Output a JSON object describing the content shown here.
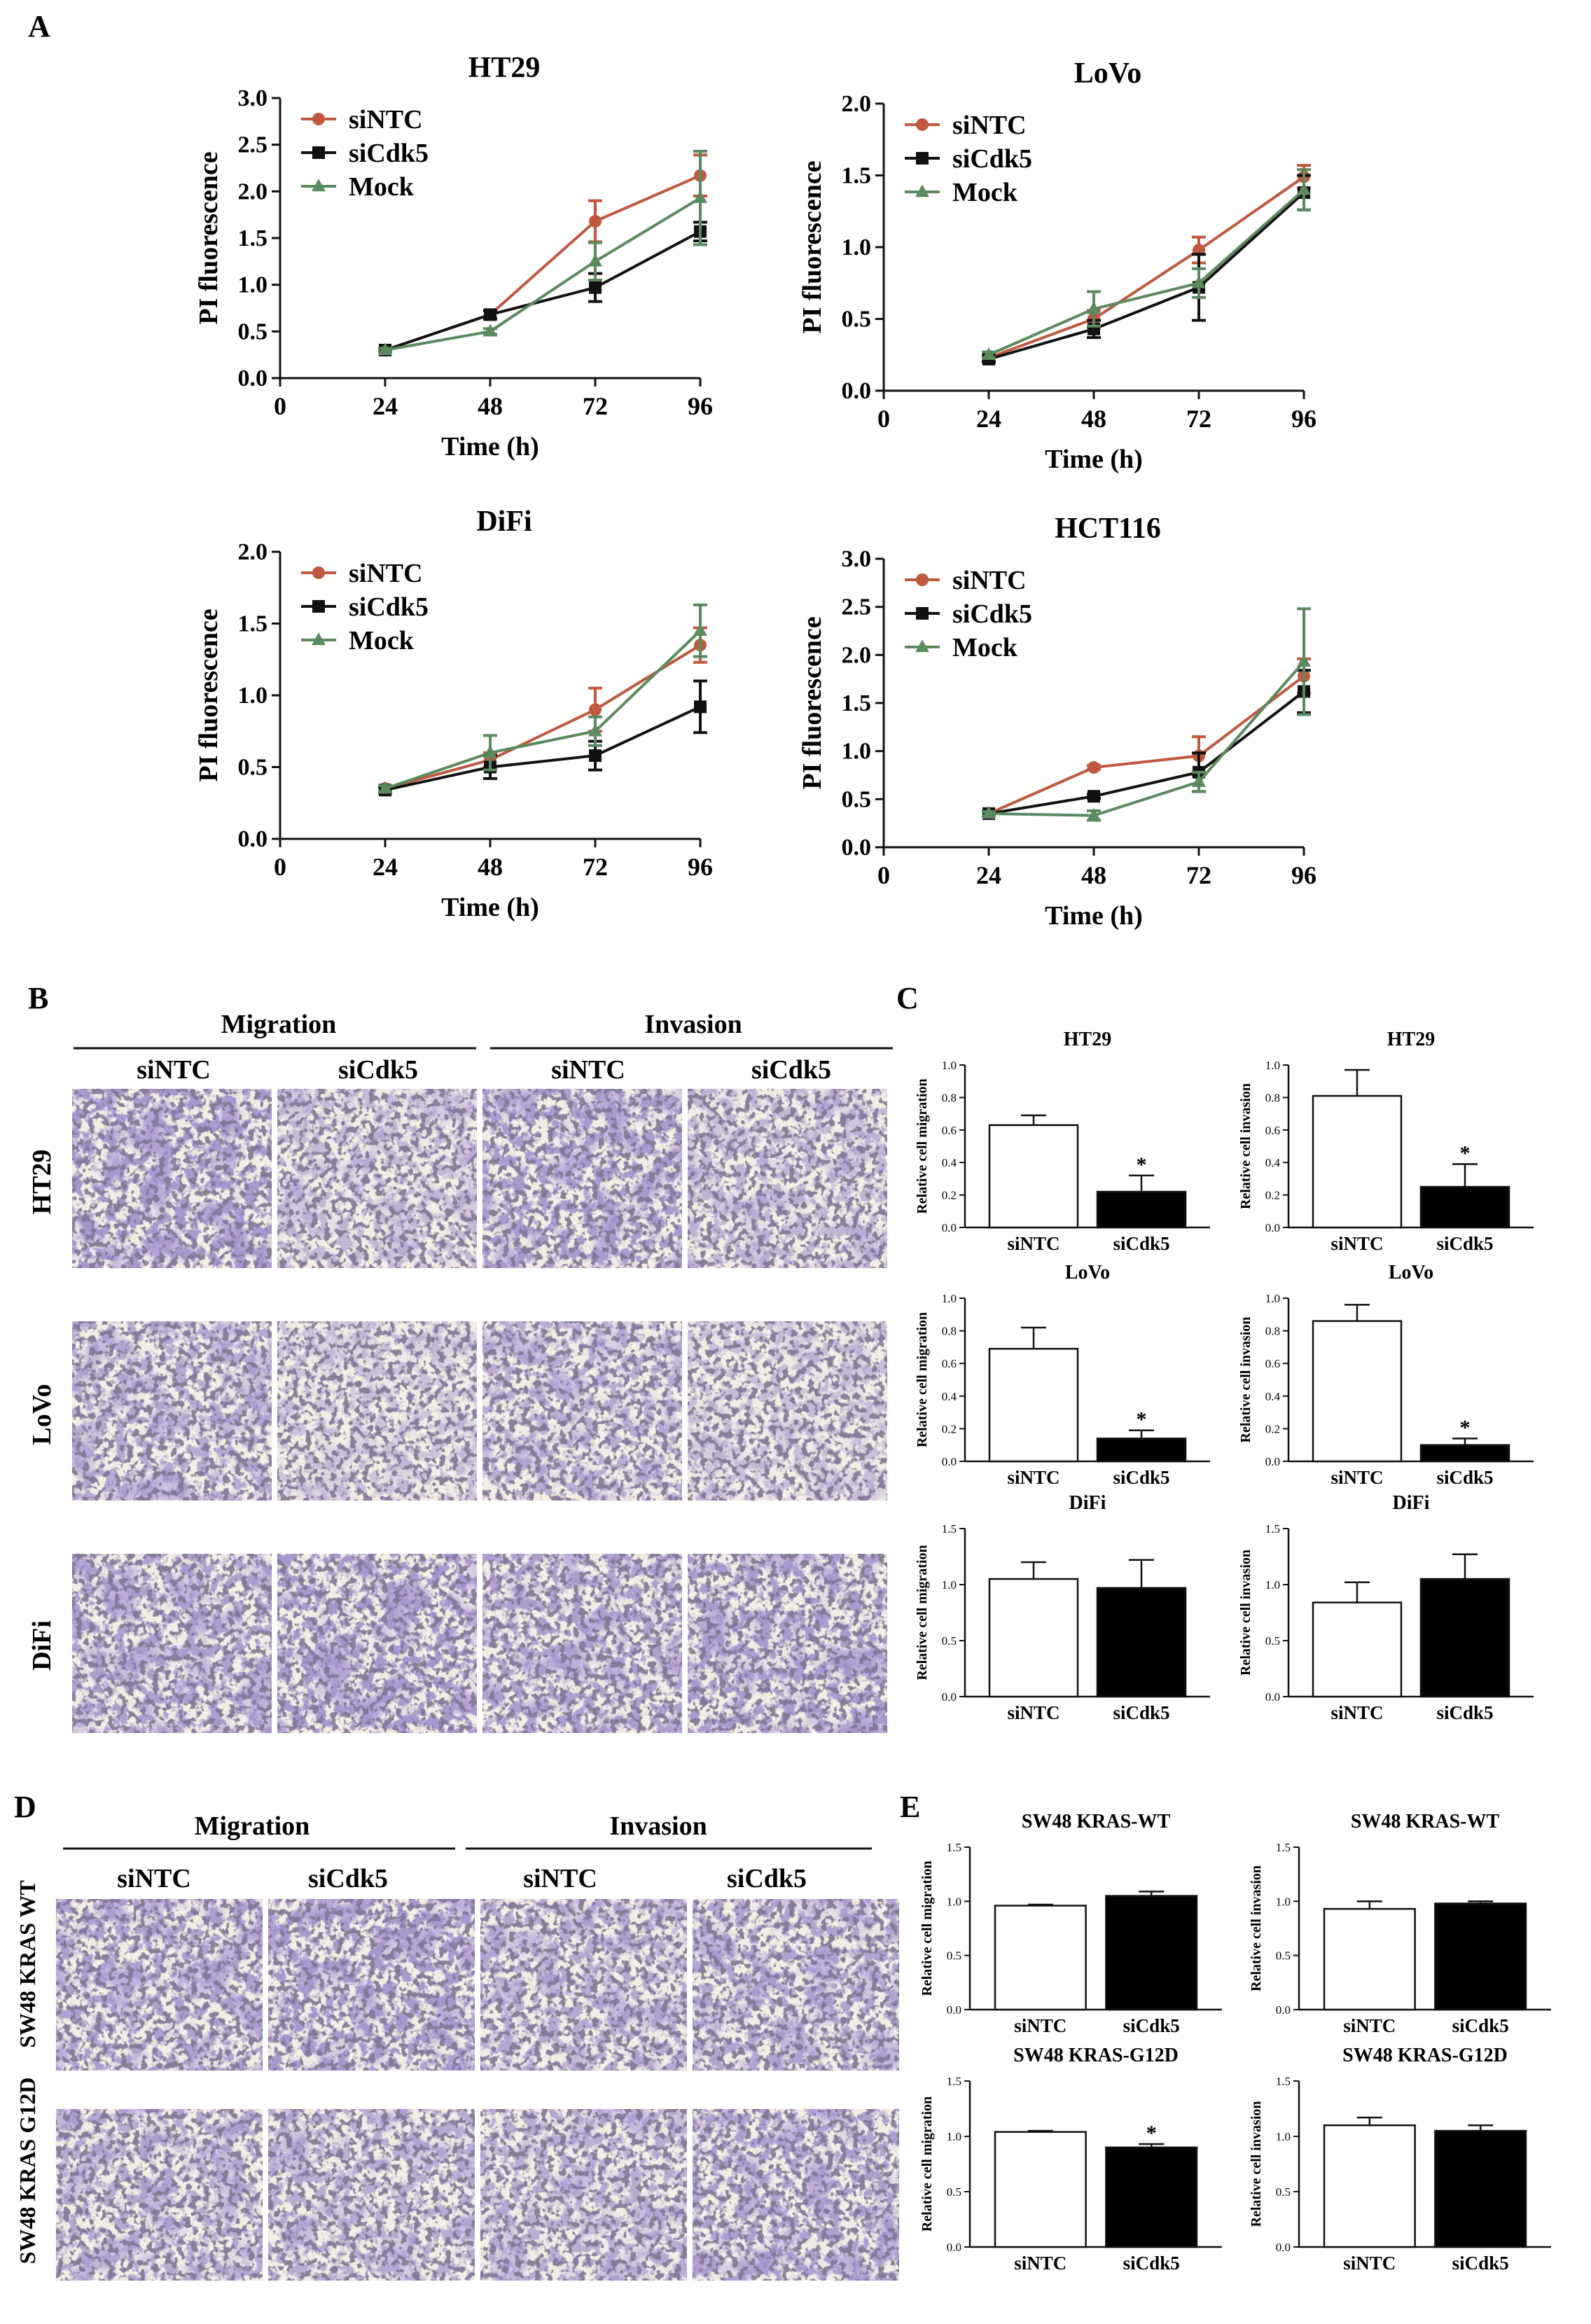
{
  "panel_letters": {
    "A": "A",
    "B": "B",
    "C": "C",
    "D": "D",
    "E": "E"
  },
  "colors": {
    "siNTC": "#c0583f",
    "siCdk5": "#111111",
    "Mock": "#5a8a5e",
    "axis": "#111111",
    "stain": "#6a4e9e"
  },
  "micrographs": {
    "bc": {
      "migration": "Migration",
      "invasion": "Invasion",
      "columns": [
        "siNTC",
        "siCdk5",
        "siNTC",
        "siCdk5"
      ],
      "rows": [
        "HT29",
        "LoVo",
        "DiFi"
      ],
      "density": [
        [
          0.85,
          0.4,
          0.75,
          0.45
        ],
        [
          0.6,
          0.3,
          0.55,
          0.35
        ],
        [
          0.7,
          0.8,
          0.7,
          0.75
        ]
      ]
    },
    "de": {
      "migration": "Migration",
      "invasion": "Invasion",
      "columns": [
        "siNTC",
        "siCdk5",
        "siNTC",
        "siCdk5"
      ],
      "rows": [
        "SW48 KRAS WT",
        "SW48 KRAS G12D"
      ],
      "density": [
        [
          0.7,
          0.8,
          0.6,
          0.65
        ],
        [
          0.6,
          0.55,
          0.55,
          0.7
        ]
      ]
    }
  },
  "chart_data": [
    {
      "id": "A1",
      "type": "line",
      "title": "HT29",
      "xlabel": "Time (h)",
      "ylabel": "PI fluorescence",
      "x": [
        24,
        48,
        72,
        96
      ],
      "xticks": [
        0,
        24,
        48,
        72,
        96
      ],
      "xlim": [
        0,
        96
      ],
      "ylim": [
        0,
        3.0
      ],
      "yticks": [
        "0.0",
        "0.5",
        "1.0",
        "1.5",
        "2.0",
        "2.5",
        "3.0"
      ],
      "legend": "top-left",
      "series": [
        {
          "name": "siNTC",
          "values": [
            0.3,
            0.68,
            1.68,
            2.17
          ],
          "errors": [
            0.02,
            0.05,
            0.22,
            0.22
          ],
          "marker": "circle",
          "color": "#c0583f"
        },
        {
          "name": "siCdk5",
          "values": [
            0.3,
            0.68,
            0.97,
            1.57
          ],
          "errors": [
            0.02,
            0.04,
            0.15,
            0.1
          ],
          "marker": "square",
          "color": "#111111"
        },
        {
          "name": "Mock",
          "values": [
            0.3,
            0.5,
            1.25,
            1.93
          ],
          "errors": [
            0.02,
            0.03,
            0.2,
            0.5
          ],
          "marker": "triangle",
          "color": "#5a8a5e"
        }
      ]
    },
    {
      "id": "A2",
      "type": "line",
      "title": "LoVo",
      "xlabel": "Time (h)",
      "ylabel": "PI fluorescence",
      "x": [
        24,
        48,
        72,
        96
      ],
      "xticks": [
        0,
        24,
        48,
        72,
        96
      ],
      "xlim": [
        0,
        96
      ],
      "ylim": [
        0,
        2.0
      ],
      "yticks": [
        "0.0",
        "0.5",
        "1.0",
        "1.5",
        "2.0"
      ],
      "legend": "top-left",
      "series": [
        {
          "name": "siNTC",
          "values": [
            0.23,
            0.5,
            0.98,
            1.49
          ],
          "errors": [
            0.02,
            0.06,
            0.09,
            0.08
          ],
          "marker": "circle",
          "color": "#c0583f"
        },
        {
          "name": "siCdk5",
          "values": [
            0.22,
            0.43,
            0.72,
            1.38
          ],
          "errors": [
            0.02,
            0.06,
            0.23,
            0.12
          ],
          "marker": "square",
          "color": "#111111"
        },
        {
          "name": "Mock",
          "values": [
            0.25,
            0.57,
            0.75,
            1.4
          ],
          "errors": [
            0.02,
            0.12,
            0.1,
            0.14
          ],
          "marker": "triangle",
          "color": "#5a8a5e"
        }
      ]
    },
    {
      "id": "A3",
      "type": "line",
      "title": "DiFi",
      "xlabel": "Time (h)",
      "ylabel": "PI fluorescence",
      "x": [
        24,
        48,
        72,
        96
      ],
      "xticks": [
        0,
        24,
        48,
        72,
        96
      ],
      "xlim": [
        0,
        96
      ],
      "ylim": [
        0,
        2.0
      ],
      "yticks": [
        "0.0",
        "0.5",
        "1.0",
        "1.5",
        "2.0"
      ],
      "legend": "top-left",
      "series": [
        {
          "name": "siNTC",
          "values": [
            0.35,
            0.55,
            0.9,
            1.35
          ],
          "errors": [
            0.02,
            0.05,
            0.15,
            0.12
          ],
          "marker": "circle",
          "color": "#c0583f"
        },
        {
          "name": "siCdk5",
          "values": [
            0.34,
            0.5,
            0.58,
            0.92
          ],
          "errors": [
            0.02,
            0.08,
            0.1,
            0.18
          ],
          "marker": "square",
          "color": "#111111"
        },
        {
          "name": "Mock",
          "values": [
            0.35,
            0.6,
            0.75,
            1.45
          ],
          "errors": [
            0.02,
            0.12,
            0.1,
            0.18
          ],
          "marker": "triangle",
          "color": "#5a8a5e"
        }
      ]
    },
    {
      "id": "A4",
      "type": "line",
      "title": "HCT116",
      "xlabel": "Time (h)",
      "ylabel": "PI fluorescence",
      "x": [
        24,
        48,
        72,
        96
      ],
      "xticks": [
        0,
        24,
        48,
        72,
        96
      ],
      "xlim": [
        0,
        96
      ],
      "ylim": [
        0,
        3.0
      ],
      "yticks": [
        "0.0",
        "0.5",
        "1.0",
        "1.5",
        "2.0",
        "2.5",
        "3.0"
      ],
      "legend": "top-left",
      "series": [
        {
          "name": "siNTC",
          "values": [
            0.35,
            0.83,
            0.95,
            1.78
          ],
          "errors": [
            0.02,
            0.02,
            0.2,
            0.18
          ],
          "marker": "circle",
          "color": "#c0583f"
        },
        {
          "name": "siCdk5",
          "values": [
            0.35,
            0.53,
            0.78,
            1.62
          ],
          "errors": [
            0.02,
            0.02,
            0.2,
            0.22
          ],
          "marker": "square",
          "color": "#111111"
        },
        {
          "name": "Mock",
          "values": [
            0.35,
            0.33,
            0.68,
            1.93
          ],
          "errors": [
            0.02,
            0.05,
            0.1,
            0.55
          ],
          "marker": "triangle",
          "color": "#5a8a5e"
        }
      ]
    },
    {
      "id": "C1",
      "type": "bar",
      "title": "HT29",
      "ylabel": "Relative cell migration",
      "categories": [
        "siNTC",
        "siCdk5"
      ],
      "values": [
        0.63,
        0.22
      ],
      "errors": [
        0.06,
        0.1
      ],
      "sig": [
        "",
        "*"
      ],
      "ylim": [
        0,
        1.0
      ],
      "yticks": [
        "0.0",
        "0.2",
        "0.4",
        "0.6",
        "0.8",
        "1.0"
      ]
    },
    {
      "id": "C2",
      "type": "bar",
      "title": "HT29",
      "ylabel": "Relative cell invasion",
      "categories": [
        "siNTC",
        "siCdk5"
      ],
      "values": [
        0.81,
        0.25
      ],
      "errors": [
        0.16,
        0.14
      ],
      "sig": [
        "",
        "*"
      ],
      "ylim": [
        0,
        1.0
      ],
      "yticks": [
        "0.0",
        "0.2",
        "0.4",
        "0.6",
        "0.8",
        "1.0"
      ]
    },
    {
      "id": "C3",
      "type": "bar",
      "title": "LoVo",
      "ylabel": "Relative cell migration",
      "categories": [
        "siNTC",
        "siCdk5"
      ],
      "values": [
        0.69,
        0.14
      ],
      "errors": [
        0.13,
        0.05
      ],
      "sig": [
        "",
        "*"
      ],
      "ylim": [
        0,
        1.0
      ],
      "yticks": [
        "0.0",
        "0.2",
        "0.4",
        "0.6",
        "0.8",
        "1.0"
      ]
    },
    {
      "id": "C4",
      "type": "bar",
      "title": "LoVo",
      "ylabel": "Relative cell invasion",
      "categories": [
        "siNTC",
        "siCdk5"
      ],
      "values": [
        0.86,
        0.1
      ],
      "errors": [
        0.1,
        0.04
      ],
      "sig": [
        "",
        "*"
      ],
      "ylim": [
        0,
        1.0
      ],
      "yticks": [
        "0.0",
        "0.2",
        "0.4",
        "0.6",
        "0.8",
        "1.0"
      ]
    },
    {
      "id": "C5",
      "type": "bar",
      "title": "DiFi",
      "ylabel": "Relative cell migration",
      "categories": [
        "siNTC",
        "siCdk5"
      ],
      "values": [
        1.05,
        0.97
      ],
      "errors": [
        0.15,
        0.25
      ],
      "sig": [
        "",
        ""
      ],
      "ylim": [
        0,
        1.5
      ],
      "yticks": [
        "0.0",
        "0.5",
        "1.0",
        "1.5"
      ]
    },
    {
      "id": "C6",
      "type": "bar",
      "title": "DiFi",
      "ylabel": "Relative cell invasion",
      "categories": [
        "siNTC",
        "siCdk5"
      ],
      "values": [
        0.84,
        1.05
      ],
      "errors": [
        0.18,
        0.22
      ],
      "sig": [
        "",
        ""
      ],
      "ylim": [
        0,
        1.5
      ],
      "yticks": [
        "0.0",
        "0.5",
        "1.0",
        "1.5"
      ]
    },
    {
      "id": "E1",
      "type": "bar",
      "title": "SW48 KRAS-WT",
      "ylabel": "Relative cell migration",
      "categories": [
        "siNTC",
        "siCdk5"
      ],
      "values": [
        0.96,
        1.05
      ],
      "errors": [
        0.01,
        0.04
      ],
      "sig": [
        "",
        ""
      ],
      "ylim": [
        0,
        1.5
      ],
      "yticks": [
        "0.0",
        "0.5",
        "1.0",
        "1.5"
      ]
    },
    {
      "id": "E2",
      "type": "bar",
      "title": "SW48 KRAS-WT",
      "ylabel": "Relative cell invasion",
      "categories": [
        "siNTC",
        "siCdk5"
      ],
      "values": [
        0.93,
        0.98
      ],
      "errors": [
        0.07,
        0.02
      ],
      "sig": [
        "",
        ""
      ],
      "ylim": [
        0,
        1.5
      ],
      "yticks": [
        "0.0",
        "0.5",
        "1.0",
        "1.5"
      ]
    },
    {
      "id": "E3",
      "type": "bar",
      "title": "SW48 KRAS-G12D",
      "ylabel": "Relative cell migration",
      "categories": [
        "siNTC",
        "siCdk5"
      ],
      "values": [
        1.04,
        0.9
      ],
      "errors": [
        0.01,
        0.03
      ],
      "sig": [
        "",
        "*"
      ],
      "ylim": [
        0,
        1.5
      ],
      "yticks": [
        "0.0",
        "0.5",
        "1.0",
        "1.5"
      ]
    },
    {
      "id": "E4",
      "type": "bar",
      "title": "SW48 KRAS-G12D",
      "ylabel": "Relative cell invasion",
      "categories": [
        "siNTC",
        "siCdk5"
      ],
      "values": [
        1.1,
        1.05
      ],
      "errors": [
        0.07,
        0.05
      ],
      "sig": [
        "",
        ""
      ],
      "ylim": [
        0,
        1.5
      ],
      "yticks": [
        "0.0",
        "0.5",
        "1.0",
        "1.5"
      ]
    }
  ]
}
